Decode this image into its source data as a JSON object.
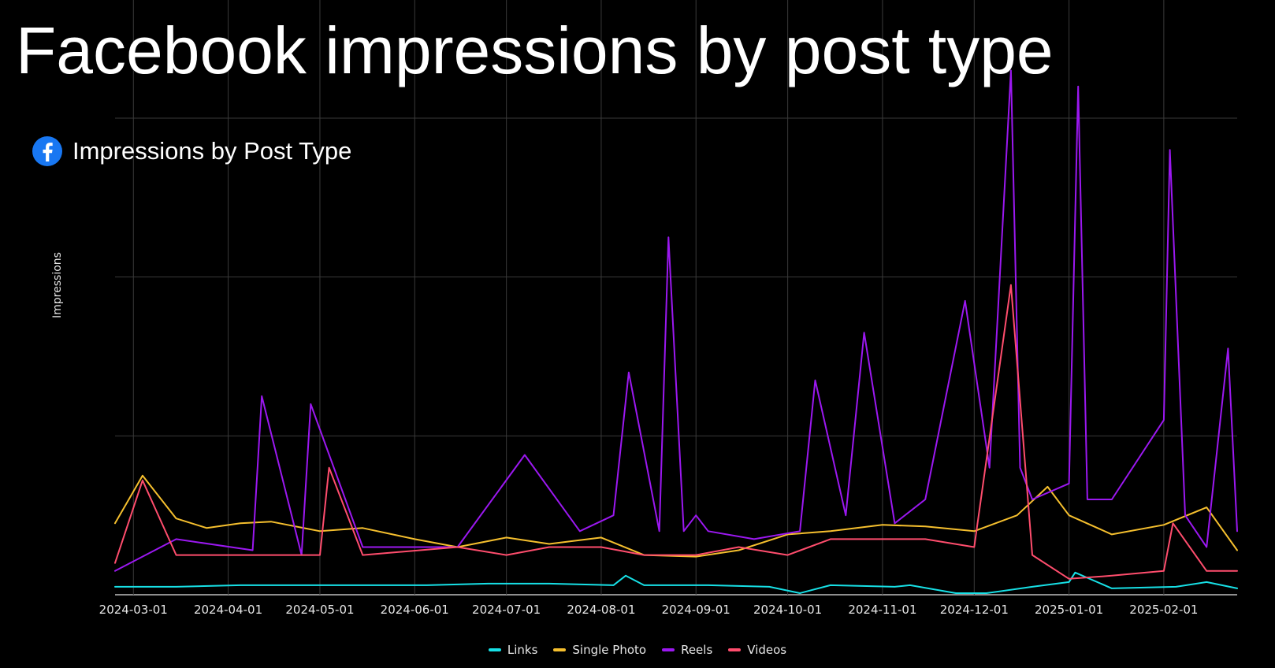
{
  "page": {
    "title": "Facebook impressions by post type"
  },
  "chart_header": {
    "title": "Impressions by Post Type",
    "icon": "facebook-icon"
  },
  "chart_data": {
    "type": "line",
    "title": "Impressions by Post Type",
    "xlabel": "",
    "ylabel": "Impressions",
    "x_range": [
      "2024-02-24",
      "2025-02-25"
    ],
    "ylim": [
      0,
      30
    ],
    "y_gridlines": [
      0,
      10,
      20,
      30
    ],
    "y_tick_labels_visible": false,
    "grid": true,
    "x_ticks": [
      "2024-03-01",
      "2024-04-01",
      "2024-05-01",
      "2024-06-01",
      "2024-07-01",
      "2024-08-01",
      "2024-09-01",
      "2024-10-01",
      "2024-11-01",
      "2024-12-01",
      "2025-01-01",
      "2025-02-01"
    ],
    "legend_position": "bottom-center",
    "series": [
      {
        "name": "Links",
        "color": "#17e0e6",
        "x": [
          "2024-02-24",
          "2024-03-15",
          "2024-04-05",
          "2024-04-25",
          "2024-05-15",
          "2024-06-05",
          "2024-06-25",
          "2024-07-15",
          "2024-08-05",
          "2024-08-09",
          "2024-08-15",
          "2024-09-05",
          "2024-09-25",
          "2024-10-05",
          "2024-10-15",
          "2024-11-05",
          "2024-11-10",
          "2024-11-25",
          "2024-12-05",
          "2024-12-20",
          "2025-01-01",
          "2025-01-03",
          "2025-01-15",
          "2025-02-05",
          "2025-02-15",
          "2025-02-25"
        ],
        "values": [
          0.5,
          0.5,
          0.6,
          0.6,
          0.6,
          0.6,
          0.7,
          0.7,
          0.6,
          1.2,
          0.6,
          0.6,
          0.5,
          0.1,
          0.6,
          0.5,
          0.6,
          0.1,
          0.1,
          0.5,
          0.8,
          1.4,
          0.4,
          0.5,
          0.8,
          0.4
        ]
      },
      {
        "name": "Single Photo",
        "color": "#f5bf2e",
        "x": [
          "2024-02-24",
          "2024-03-04",
          "2024-03-15",
          "2024-03-25",
          "2024-04-05",
          "2024-04-15",
          "2024-05-01",
          "2024-05-15",
          "2024-06-01",
          "2024-06-15",
          "2024-07-01",
          "2024-07-15",
          "2024-08-01",
          "2024-08-15",
          "2024-09-01",
          "2024-09-15",
          "2024-10-01",
          "2024-10-15",
          "2024-11-01",
          "2024-11-15",
          "2024-12-01",
          "2024-12-15",
          "2024-12-25",
          "2025-01-01",
          "2025-01-15",
          "2025-02-01",
          "2025-02-15",
          "2025-02-25"
        ],
        "values": [
          4.5,
          7.5,
          4.8,
          4.2,
          4.5,
          4.6,
          4.0,
          4.2,
          3.5,
          3.0,
          3.6,
          3.2,
          3.6,
          2.5,
          2.4,
          2.8,
          3.8,
          4.0,
          4.4,
          4.3,
          4.0,
          5.0,
          6.8,
          5.0,
          3.8,
          4.4,
          5.5,
          2.8
        ]
      },
      {
        "name": "Reels",
        "color": "#9b18f0",
        "x": [
          "2024-02-24",
          "2024-03-15",
          "2024-04-09",
          "2024-04-12",
          "2024-04-25",
          "2024-04-28",
          "2024-05-15",
          "2024-06-15",
          "2024-07-07",
          "2024-07-25",
          "2024-08-05",
          "2024-08-10",
          "2024-08-20",
          "2024-08-23",
          "2024-08-28",
          "2024-09-01",
          "2024-09-05",
          "2024-09-20",
          "2024-10-05",
          "2024-10-10",
          "2024-10-20",
          "2024-10-26",
          "2024-11-05",
          "2024-11-15",
          "2024-11-28",
          "2024-12-06",
          "2024-12-13",
          "2024-12-16",
          "2024-12-20",
          "2025-01-01",
          "2025-01-04",
          "2025-01-07",
          "2025-01-15",
          "2025-02-01",
          "2025-02-03",
          "2025-02-08",
          "2025-02-15",
          "2025-02-22",
          "2025-02-25"
        ],
        "values": [
          1.5,
          3.5,
          2.8,
          12.5,
          2.5,
          12.0,
          3.0,
          3.0,
          8.8,
          4.0,
          5.0,
          14.0,
          4.0,
          22.5,
          4.0,
          5.0,
          4.0,
          3.5,
          4.0,
          13.5,
          5.0,
          16.5,
          4.5,
          6.0,
          18.5,
          8.0,
          33.0,
          8.0,
          6.0,
          7.0,
          32.0,
          6.0,
          6.0,
          11.0,
          28.0,
          5.0,
          3.0,
          15.5,
          4.0
        ]
      },
      {
        "name": "Videos",
        "color": "#ff4d6d",
        "x": [
          "2024-02-24",
          "2024-03-04",
          "2024-03-15",
          "2024-04-05",
          "2024-05-01",
          "2024-05-04",
          "2024-05-15",
          "2024-06-15",
          "2024-07-01",
          "2024-07-15",
          "2024-08-01",
          "2024-08-15",
          "2024-09-01",
          "2024-09-15",
          "2024-10-01",
          "2024-10-15",
          "2024-11-01",
          "2024-11-15",
          "2024-12-01",
          "2024-12-13",
          "2024-12-20",
          "2025-01-01",
          "2025-01-15",
          "2025-02-01",
          "2025-02-04",
          "2025-02-15",
          "2025-02-25"
        ],
        "values": [
          2.0,
          7.2,
          2.5,
          2.5,
          2.5,
          8.0,
          2.5,
          3.0,
          2.5,
          3.0,
          3.0,
          2.5,
          2.5,
          3.0,
          2.5,
          3.5,
          3.5,
          3.5,
          3.0,
          19.5,
          2.5,
          1.0,
          1.2,
          1.5,
          4.5,
          1.5,
          1.5
        ]
      }
    ]
  }
}
